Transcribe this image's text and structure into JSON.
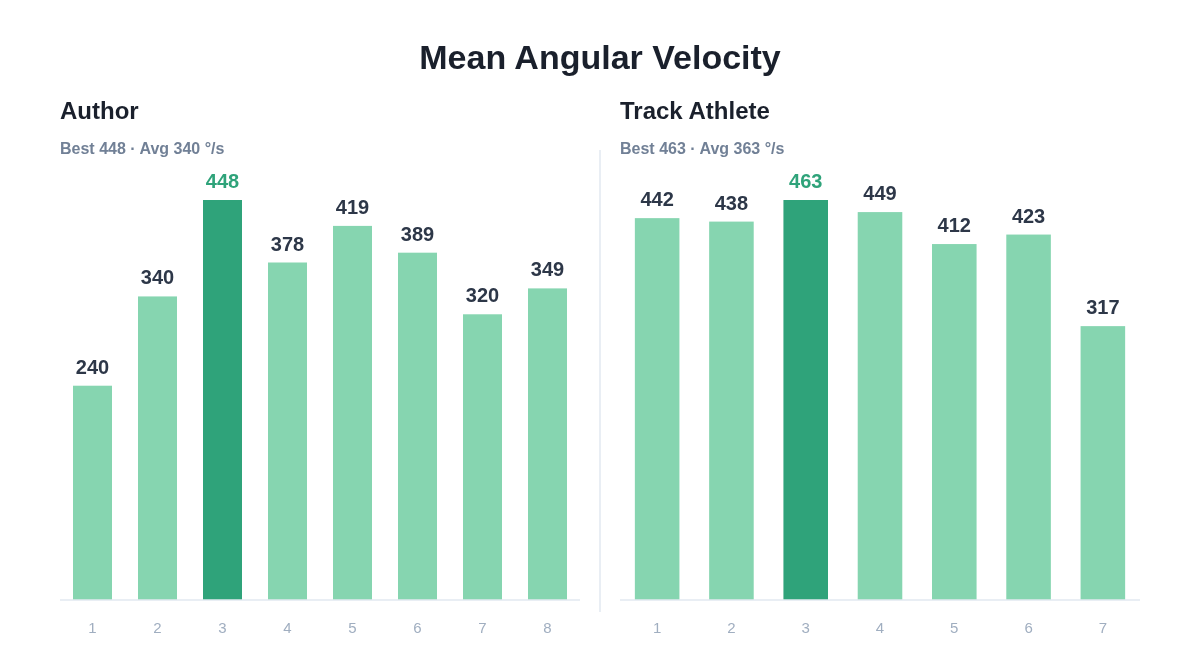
{
  "chart_data": [
    {
      "type": "other",
      "title": "Mean Angular Velocity"
    },
    {
      "type": "bar",
      "title": "Author",
      "subtitle": "Best 448 · Avg 340 °/s",
      "categories": [
        "1",
        "2",
        "3",
        "4",
        "5",
        "6",
        "7",
        "8"
      ],
      "values": [
        240,
        340,
        448,
        378,
        419,
        389,
        320,
        349
      ],
      "colors": [
        "#86d5b0",
        "#86d5b0",
        "#2fa37a",
        "#86d5b0",
        "#86d5b0",
        "#86d5b0",
        "#86d5b0",
        "#86d5b0"
      ],
      "data_labels": true,
      "grid": false
    },
    {
      "type": "bar",
      "title": "Track Athlete",
      "subtitle": "Best 463 · Avg 363 °/s",
      "categories": [
        "1",
        "2",
        "3",
        "4",
        "5",
        "6",
        "7"
      ],
      "values": [
        442,
        438,
        463,
        449,
        412,
        423,
        317
      ],
      "colors": [
        "#86d5b0",
        "#86d5b0",
        "#2fa37a",
        "#86d5b0",
        "#86d5b0",
        "#86d5b0",
        "#86d5b0"
      ],
      "data_labels": true,
      "grid": false
    }
  ]
}
